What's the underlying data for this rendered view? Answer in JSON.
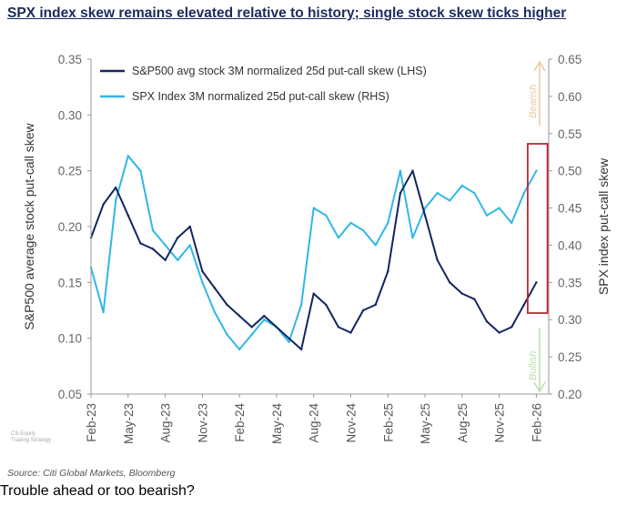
{
  "title": "SPX index skew remains elevated relative to history; single stock skew ticks higher",
  "source": "Source: Citi Global Markets, Bloomberg",
  "caption": "Trouble ahead or too bearish?",
  "watermark": [
    "Citi Equity",
    "Trading Strategy"
  ],
  "colors": {
    "lhs": "#13255f",
    "rhs": "#2fb7e8",
    "box": "#c0272d",
    "bearish": "#e9c9a3",
    "bullish": "#b9dca8",
    "axis": "#999999"
  },
  "chart_data": {
    "type": "line",
    "title": "SPX index skew remains elevated relative to history; single stock skew ticks higher",
    "ylabel_left": "S&P500 average stock put-call skew",
    "ylabel_right": "SPX index put-call skew",
    "ylim_left": [
      0.05,
      0.35
    ],
    "ylim_right": [
      0.2,
      0.65
    ],
    "yticks_left": [
      "0.35",
      "0.30",
      "0.25",
      "0.20",
      "0.15",
      "0.10",
      "0.05"
    ],
    "yticks_right": [
      "0.65",
      "0.60",
      "0.55",
      "0.50",
      "0.45",
      "0.40",
      "0.35",
      "0.30",
      "0.25",
      "0.20"
    ],
    "xlim_months": [
      0,
      37
    ],
    "xticks": [
      "Feb-23",
      "May-23",
      "Aug-23",
      "Nov-23",
      "Feb-24",
      "May-24",
      "Aug-24",
      "Nov-24",
      "Feb-25",
      "May-25",
      "Aug-25",
      "Nov-25",
      "Feb-26"
    ],
    "annotations": {
      "bearish": "Bearish",
      "bullish": "Bullish"
    },
    "legend_position": "top-left",
    "series": [
      {
        "name": "S&P500 avg stock 3M normalized 25d put-call skew (LHS)",
        "axis": "left",
        "x": [
          "2023-02",
          "2023-03",
          "2023-04",
          "2023-05",
          "2023-06",
          "2023-07",
          "2023-08",
          "2023-09",
          "2023-10",
          "2023-11",
          "2023-12",
          "2024-01",
          "2024-02",
          "2024-03",
          "2024-04",
          "2024-05",
          "2024-06",
          "2024-07",
          "2024-08",
          "2024-09",
          "2024-10",
          "2024-11",
          "2024-12",
          "2025-01",
          "2025-02",
          "2025-03",
          "2025-04",
          "2025-05",
          "2025-06",
          "2025-07",
          "2025-08",
          "2025-09",
          "2025-10",
          "2025-11",
          "2025-12",
          "2026-01",
          "2026-02"
        ],
        "values": [
          0.19,
          0.22,
          0.235,
          0.21,
          0.185,
          0.18,
          0.17,
          0.19,
          0.2,
          0.16,
          0.145,
          0.13,
          0.12,
          0.11,
          0.12,
          0.11,
          0.1,
          0.09,
          0.14,
          0.13,
          0.11,
          0.105,
          0.125,
          0.13,
          0.16,
          0.23,
          0.25,
          0.21,
          0.17,
          0.15,
          0.14,
          0.135,
          0.115,
          0.105,
          0.11,
          0.13,
          0.15
        ]
      },
      {
        "name": "SPX Index 3M normalized 25d put-call skew (RHS)",
        "axis": "right",
        "x": [
          "2023-02",
          "2023-03",
          "2023-04",
          "2023-05",
          "2023-06",
          "2023-07",
          "2023-08",
          "2023-09",
          "2023-10",
          "2023-11",
          "2023-12",
          "2024-01",
          "2024-02",
          "2024-03",
          "2024-04",
          "2024-05",
          "2024-06",
          "2024-07",
          "2024-08",
          "2024-09",
          "2024-10",
          "2024-11",
          "2024-12",
          "2025-01",
          "2025-02",
          "2025-03",
          "2025-04",
          "2025-05",
          "2025-06",
          "2025-07",
          "2025-08",
          "2025-09",
          "2025-10",
          "2025-11",
          "2025-12",
          "2026-01",
          "2026-02"
        ],
        "values": [
          0.37,
          0.31,
          0.46,
          0.52,
          0.5,
          0.42,
          0.4,
          0.38,
          0.4,
          0.35,
          0.31,
          0.28,
          0.26,
          0.28,
          0.3,
          0.29,
          0.27,
          0.32,
          0.45,
          0.44,
          0.41,
          0.43,
          0.42,
          0.4,
          0.43,
          0.5,
          0.41,
          0.45,
          0.47,
          0.46,
          0.48,
          0.47,
          0.44,
          0.45,
          0.43,
          0.47,
          0.5
        ]
      }
    ]
  }
}
